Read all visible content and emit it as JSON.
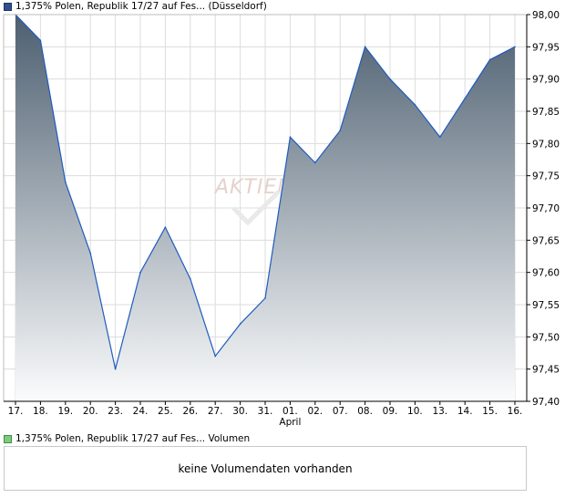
{
  "price_legend": {
    "label": "1,375% Polen, Republik 17/27 auf Fes... (Düsseldorf)",
    "color": "#2f4f8f"
  },
  "volume_legend": {
    "label": "1,375% Polen, Republik 17/27 auf Fes... Volumen",
    "color": "#7dcc7d"
  },
  "volume_panel": {
    "message": "keine Volumendaten vorhanden"
  },
  "watermark": "AKTIEN",
  "chart_data": {
    "type": "area",
    "title": "1,375% Polen, Republik 17/27 auf Fes... (Düsseldorf)",
    "x": [
      "17.",
      "18.",
      "19.",
      "20.",
      "23.",
      "24.",
      "25.",
      "26.",
      "27.",
      "30.",
      "31.",
      "01.",
      "02.",
      "07.",
      "08.",
      "09.",
      "10.",
      "13.",
      "14.",
      "15.",
      "16."
    ],
    "x_sublabels": [
      {
        "index": 11,
        "label": "April"
      }
    ],
    "series": [
      {
        "name": "1,375% Polen, Republik 17/27 auf Fes... (Düsseldorf)",
        "values": [
          98.0,
          97.96,
          97.74,
          97.63,
          97.45,
          97.6,
          97.67,
          97.59,
          97.47,
          97.52,
          97.56,
          97.81,
          97.77,
          97.82,
          97.95,
          97.9,
          97.86,
          97.81,
          97.87,
          97.93,
          97.95
        ],
        "line_color": "#1f5bbf",
        "fill_top": "#4d5f70",
        "fill_bottom": "#fbfcfd"
      }
    ],
    "y_ticks": [
      97.4,
      97.45,
      97.5,
      97.55,
      97.6,
      97.65,
      97.7,
      97.75,
      97.8,
      97.85,
      97.9,
      97.95,
      98.0
    ],
    "y_tick_labels": [
      "97,40",
      "97,45",
      "97,50",
      "97,55",
      "97,60",
      "97,65",
      "97,70",
      "97,75",
      "97,80",
      "97,85",
      "97,90",
      "97,95",
      "98,00"
    ],
    "ylim": [
      97.4,
      98.0
    ],
    "y_axis_side": "right",
    "grid": true,
    "xlabel": "",
    "ylabel": ""
  }
}
